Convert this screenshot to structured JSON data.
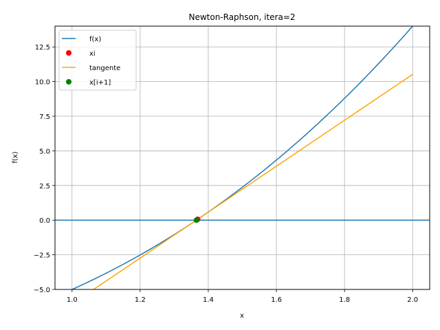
{
  "chart_data": {
    "type": "line",
    "title": "Newton-Raphson, itera=2",
    "xlabel": "x",
    "ylabel": "f(x)",
    "xlim": [
      0.95,
      2.05
    ],
    "ylim": [
      -5.0,
      14.0
    ],
    "xticks": [
      "1.0",
      "1.2",
      "1.4",
      "1.6",
      "1.8",
      "2.0"
    ],
    "yticks": [
      "−5.0",
      "−2.5",
      "0.0",
      "2.5",
      "5.0",
      "7.5",
      "10.0",
      "12.5"
    ],
    "grid": true,
    "legend_position": "upper left",
    "series": [
      {
        "name": "f(x)",
        "kind": "line",
        "color": "#1f77b4",
        "function": "x^3 + 4x^2 - 10",
        "x": [
          1.0,
          1.2,
          1.4,
          1.6,
          1.8,
          2.0
        ],
        "values": [
          -5.0,
          -2.512,
          0.584,
          4.336,
          8.792,
          14.0
        ]
      },
      {
        "name": "xi",
        "kind": "point",
        "color": "#ff0000",
        "x": [
          1.3689
        ],
        "values": [
          0.06
        ]
      },
      {
        "name": "tangente",
        "kind": "line",
        "color": "#ffa500",
        "x": [
          1.0,
          2.0
        ],
        "values": [
          -6.05,
          10.52
        ]
      },
      {
        "name": "x[i+1]",
        "kind": "point",
        "color": "#008000",
        "x": [
          1.3652
        ],
        "values": [
          0.0
        ]
      },
      {
        "name": "y=0",
        "kind": "hline",
        "color": "#1f77b4",
        "values": [
          0.0
        ]
      }
    ]
  },
  "legend": [
    {
      "label": "f(x)",
      "kind": "line",
      "color": "#1f77b4"
    },
    {
      "label": "xi",
      "kind": "marker",
      "color": "#ff0000"
    },
    {
      "label": "tangente",
      "kind": "line",
      "color": "#ffa500"
    },
    {
      "label": "x[i+1]",
      "kind": "marker",
      "color": "#008000"
    }
  ]
}
